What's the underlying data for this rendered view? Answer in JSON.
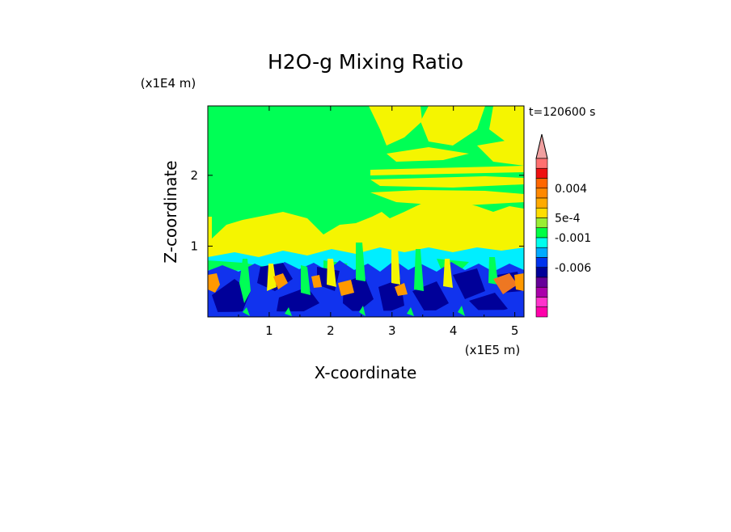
{
  "chart_data": {
    "type": "heatmap",
    "title": "H2O-g Mixing Ratio",
    "xlabel": "X-coordinate",
    "ylabel": "Z-coordinate",
    "x_unit": "(x1E5 m)",
    "y_unit": "(x1E4 m)",
    "time_label": "t=120600 s",
    "xlim": [
      0,
      5.15
    ],
    "ylim": [
      0,
      2.98
    ],
    "x_ticks": [
      "1",
      "2",
      "3",
      "4",
      "5"
    ],
    "x_tick_values": [
      1,
      2,
      3,
      4,
      5
    ],
    "y_ticks": [
      "1",
      "2"
    ],
    "y_tick_values": [
      1,
      2
    ],
    "colorbar": {
      "tick_labels": [
        "0.004",
        "5e-4",
        "-0.001",
        "-0.006"
      ],
      "colors": [
        "#f0a0a0",
        "#ff7070",
        "#ee1111",
        "#ff6600",
        "#ff8800",
        "#ffaa00",
        "#ffdd00",
        "#99ee33",
        "#00ff44",
        "#00ffee",
        "#00aaff",
        "#0033ee",
        "#000099",
        "#660099",
        "#aa00aa",
        "#ff33cc",
        "#ff00aa"
      ]
    },
    "field_colors": {
      "green": "#00ff55",
      "yellow": "#f5f500",
      "cyan": "#00eeff",
      "blue": "#1133ee",
      "navy": "#000099",
      "orange": "#ff9900",
      "dark_orange": "#ee7722"
    }
  }
}
